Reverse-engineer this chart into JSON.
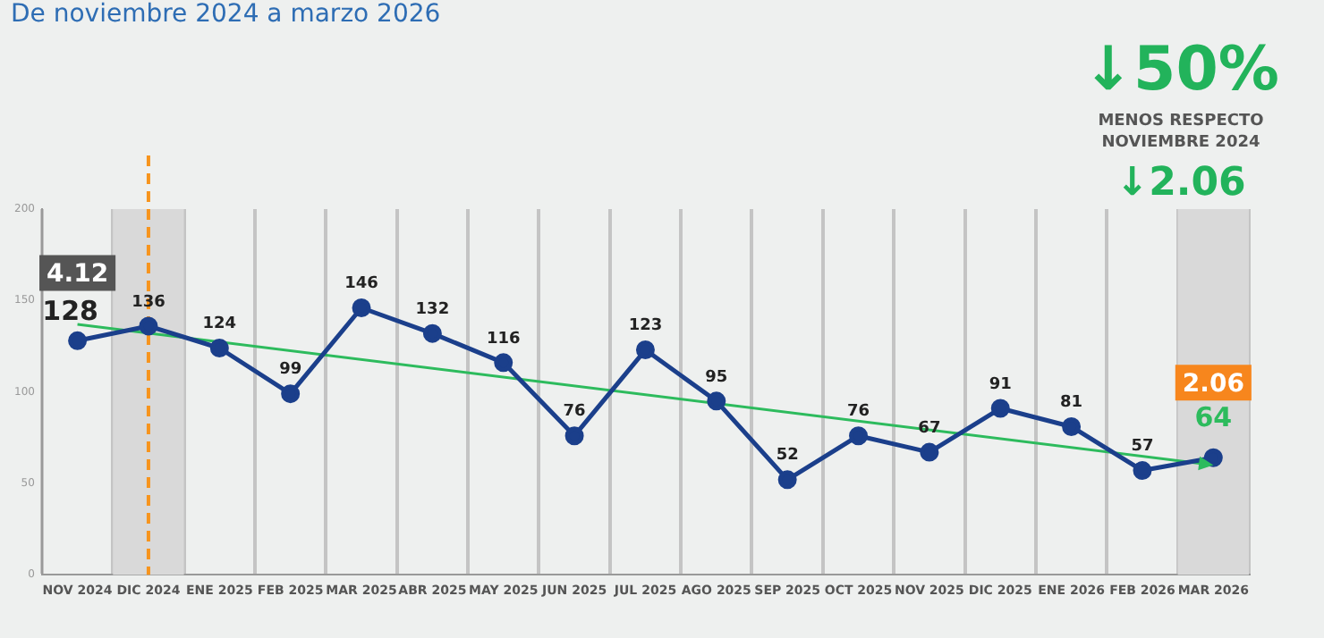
{
  "chart_data": {
    "type": "line",
    "title": "De noviembre 2024 a marzo 2026",
    "annotations": [
      "↓50%",
      "MENOS RESPECTO NOVIEMBRE 2024",
      "↓2.06",
      {
        "text": "4.12",
        "x": "NOV 2024",
        "y": 165
      },
      {
        "text": "2.06",
        "x": "MAR 2026",
        "y": 105
      }
    ],
    "categories": [
      "NOV 2024",
      "DIC 2024",
      "ENE 2025",
      "FEB 2025",
      "MAR 2025",
      "ABR 2025",
      "MAY 2025",
      "JUN 2025",
      "JUL 2025",
      "AGO 2025",
      "SEP 2025",
      "OCT 2025",
      "NOV 2025",
      "DIC 2025",
      "ENE 2026",
      "FEB 2026",
      "MAR 2026"
    ],
    "series": [
      {
        "color": "#1b3f8b",
        "values": [
          128,
          136,
          124,
          99,
          146,
          132,
          116,
          76,
          123,
          95,
          52,
          76,
          67,
          91,
          81,
          57,
          64
        ],
        "value_labels": [
          "128",
          "136",
          "124",
          "99",
          "146",
          "132",
          "116",
          "76",
          "123",
          "95",
          "52",
          "76",
          "67",
          "91",
          "81",
          "57",
          "64"
        ]
      },
      {
        "type": "line",
        "color": "#2dbb5d",
        "x": [
          "NOV 2024",
          "MAR 2026"
        ],
        "values": [
          137,
          60
        ],
        "marker": "triangle"
      }
    ],
    "ylim": [
      0,
      200
    ],
    "yticks": [
      0,
      50,
      100,
      150,
      200
    ],
    "grid": "x",
    "legend": false,
    "marker": "circle",
    "bands": [
      {
        "axis": "x",
        "from": "DIC 2024",
        "to": "DIC 2024",
        "color": "#d9d9d9"
      },
      {
        "axis": "x",
        "from": "MAR 2026",
        "to": "MAR 2026",
        "color": "#d9d9d9"
      }
    ],
    "ref_lines": [
      {
        "axis": "x",
        "value": "DIC 2024",
        "color": "#f7941d",
        "line_style": "dashed"
      }
    ]
  }
}
